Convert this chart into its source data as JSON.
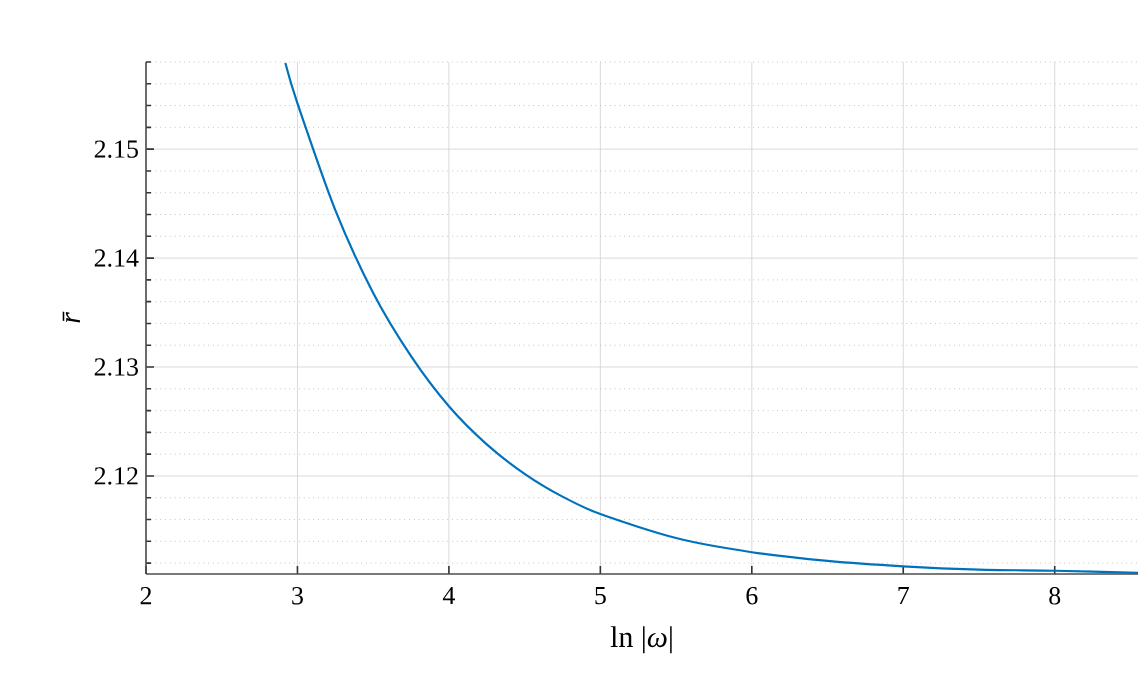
{
  "chart_data": {
    "type": "line",
    "xlabel": "ln |*ω*|",
    "ylabel": "r̄",
    "x": [
      2.92,
      3.0,
      3.25,
      3.5,
      3.75,
      4.0,
      4.25,
      4.5,
      4.75,
      5.0,
      5.5,
      6.0,
      6.5,
      7.0,
      7.5,
      8.0,
      8.55
    ],
    "series": [
      {
        "color": "#0072bd",
        "values": [
          2.1579,
          2.1542,
          2.1444,
          2.1368,
          2.131,
          2.1264,
          2.1229,
          2.1202,
          2.1181,
          2.1165,
          2.1143,
          2.113,
          2.1122,
          2.1117,
          2.1114,
          2.1113,
          2.1111
        ]
      }
    ],
    "xlim": [
      2,
      8.55
    ],
    "ylim": [
      2.111,
      2.158
    ],
    "xticks": [
      2,
      3,
      4,
      5,
      6,
      7,
      8
    ],
    "yticks": [
      2.12,
      2.13,
      2.14,
      2.15
    ],
    "grid": true,
    "marker": "none",
    "line_style": "solid"
  }
}
